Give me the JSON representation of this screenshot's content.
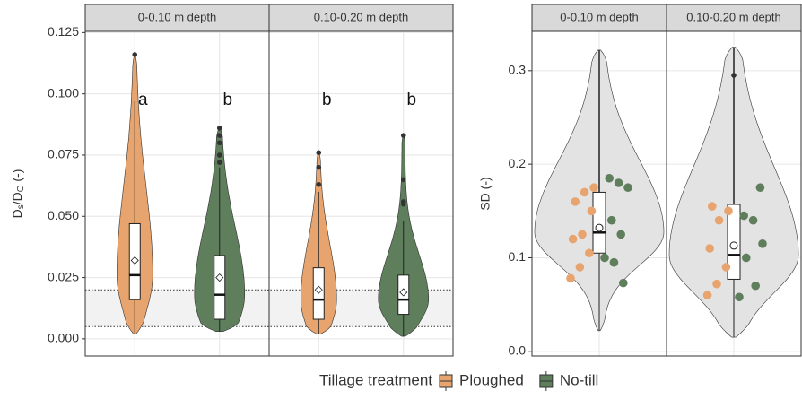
{
  "chart_data": [
    {
      "type": "violin",
      "facets": [
        "0-0.10 m depth",
        "0.10-0.20 m depth"
      ],
      "y_label": [
        "D",
        "s",
        "/D",
        "O",
        " (-)"
      ],
      "ylim": [
        -0.007,
        0.1255
      ],
      "yticks": [
        {
          "value": 0,
          "label": "0.000"
        },
        {
          "value": 0.025,
          "label": "0.025"
        },
        {
          "value": 0.05,
          "label": "0.050"
        },
        {
          "value": 0.075,
          "label": "0.075"
        },
        {
          "value": 0.1,
          "label": "0.100"
        },
        {
          "value": 0.125,
          "label": "0.125"
        }
      ],
      "reference_band": [
        0.005,
        0.02
      ],
      "legend_title": "Tillage treatment",
      "series": [
        {
          "name": "Ploughed",
          "color": "#e8a46e",
          "boxes": [
            {
              "min": 0.002,
              "q1": 0.016,
              "median": 0.026,
              "q3": 0.047,
              "max": 0.097,
              "mean": 0.032,
              "outliers": [
                0.116
              ],
              "letter": "a"
            },
            {
              "min": 0.002,
              "q1": 0.008,
              "median": 0.016,
              "q3": 0.029,
              "max": 0.06,
              "mean": 0.02,
              "outliers": [
                0.063,
                0.07,
                0.076
              ],
              "letter": "b"
            }
          ]
        },
        {
          "name": "No-till",
          "color": "#5e7e5c",
          "boxes": [
            {
              "min": 0.003,
              "q1": 0.008,
              "median": 0.018,
              "q3": 0.034,
              "max": 0.07,
              "mean": 0.025,
              "outliers": [
                0.072,
                0.075,
                0.08,
                0.083,
                0.086
              ],
              "letter": "b"
            },
            {
              "min": 0.001,
              "q1": 0.01,
              "median": 0.016,
              "q3": 0.026,
              "max": 0.048,
              "mean": 0.019,
              "outliers": [
                0.055,
                0.056,
                0.065,
                0.083
              ],
              "letter": "b"
            }
          ]
        }
      ]
    },
    {
      "type": "violin-points",
      "facets": [
        "0-0.10 m depth",
        "0.10-0.20 m depth"
      ],
      "y_label": "SD (-)",
      "ylim": [
        -0.005,
        0.342
      ],
      "yticks": [
        {
          "value": 0,
          "label": "0.0"
        },
        {
          "value": 0.1,
          "label": "0.1"
        },
        {
          "value": 0.2,
          "label": "0.2"
        },
        {
          "value": 0.3,
          "label": "0.3"
        }
      ],
      "violin_color": "#e3e3e3",
      "boxes": [
        {
          "min": 0.022,
          "q1": 0.105,
          "median": 0.127,
          "q3": 0.17,
          "max": 0.322,
          "mean": 0.132,
          "outliers": []
        },
        {
          "min": 0.015,
          "q1": 0.077,
          "median": 0.103,
          "q3": 0.157,
          "max": 0.325,
          "mean": 0.113,
          "outliers": [
            0.295
          ]
        }
      ],
      "points": [
        [
          [
            0.175,
            0.17,
            0.16,
            0.15,
            0.125,
            0.12,
            0.105,
            0.09,
            0.078
          ],
          [
            0.185,
            0.18,
            0.175,
            0.14,
            0.125,
            0.1,
            0.095,
            0.073
          ]
        ],
        [
          [
            0.155,
            0.15,
            0.14,
            0.11,
            0.09,
            0.072,
            0.06
          ],
          [
            0.175,
            0.145,
            0.14,
            0.115,
            0.1,
            0.07,
            0.058
          ]
        ]
      ]
    }
  ]
}
